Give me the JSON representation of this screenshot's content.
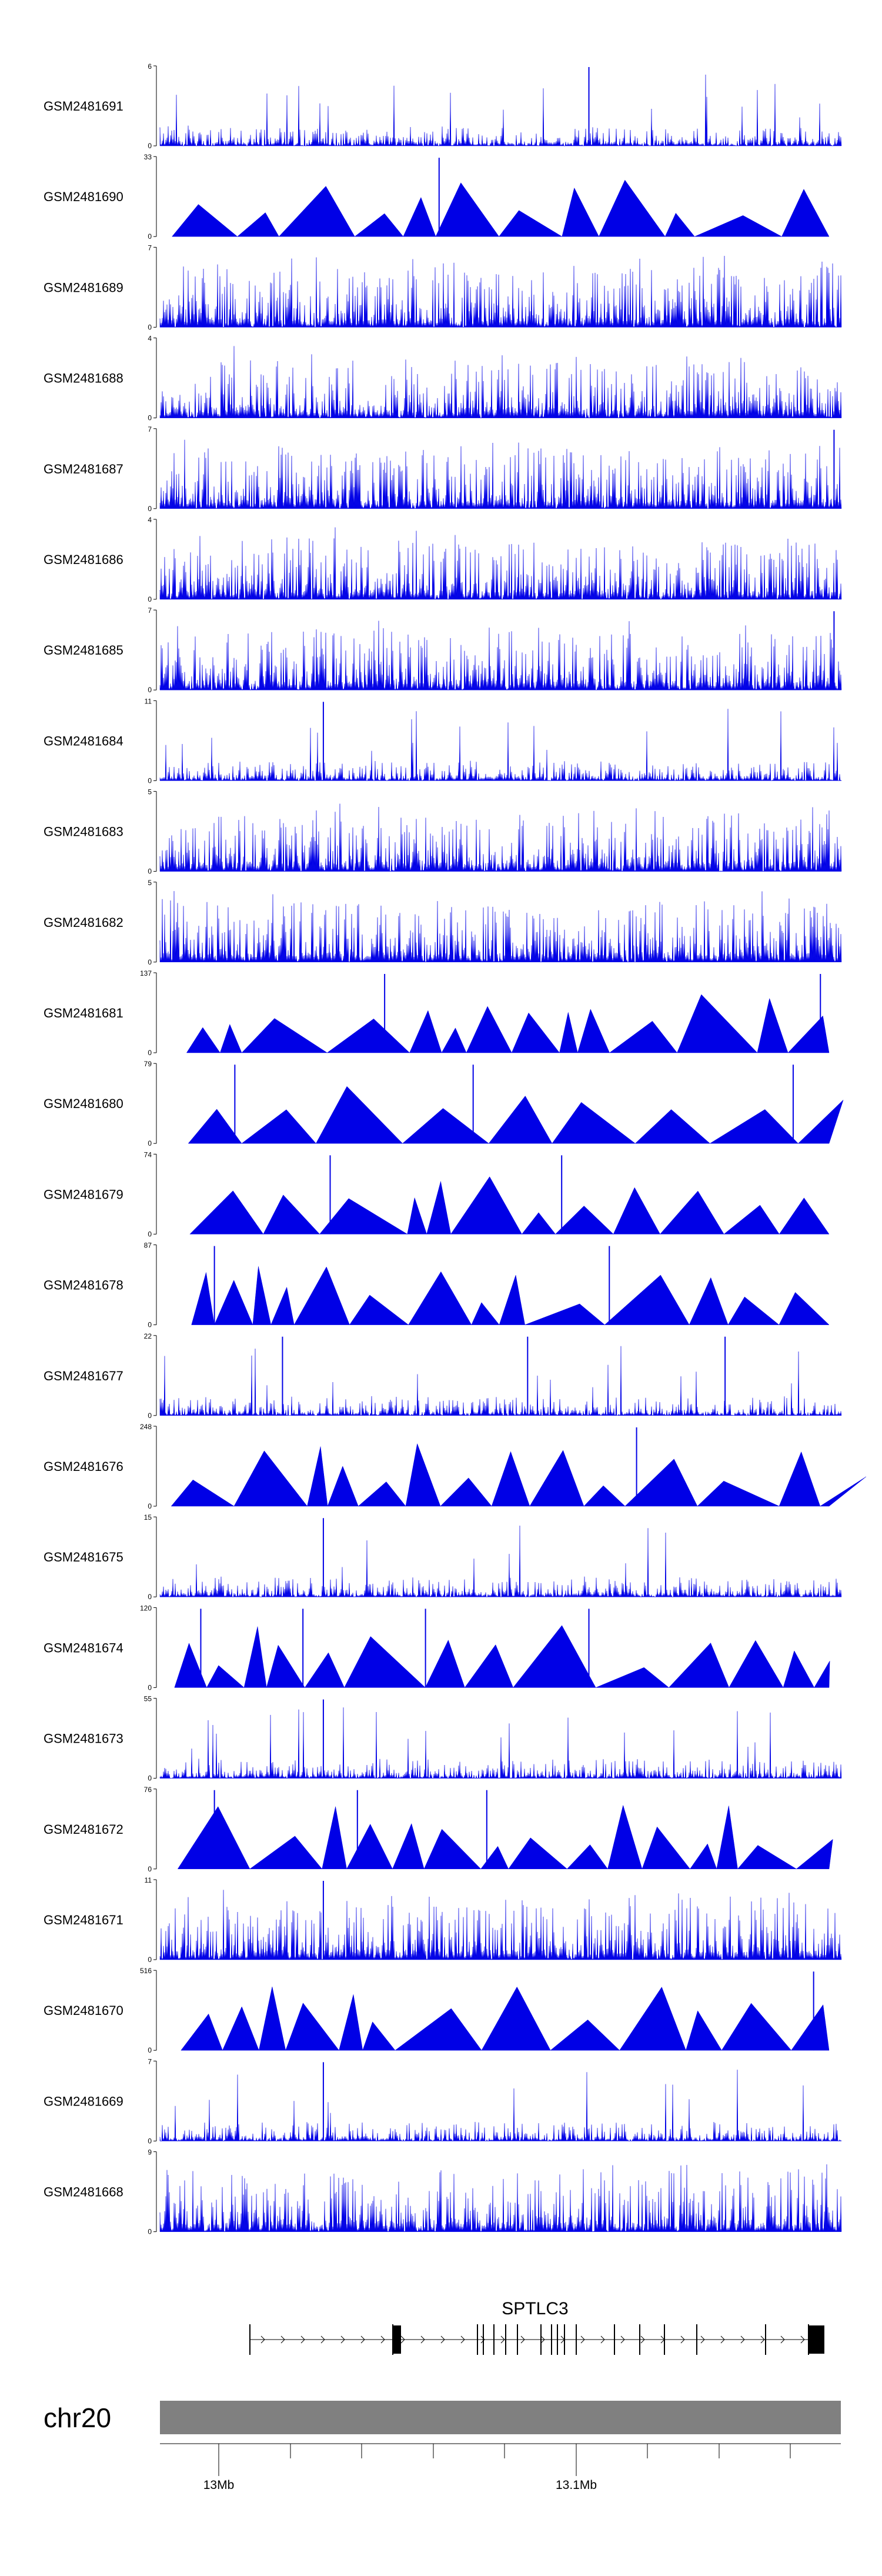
{
  "chart_data": {
    "type": "area",
    "title": "",
    "xlabel": "",
    "ylabel": "",
    "colors": {
      "signal": "#0000e6",
      "chromosome": "#808080",
      "gene": "#000000"
    },
    "tracks": [
      {
        "name": "GSM2481691",
        "ymax": "6",
        "ymin": "0",
        "style": "spiky",
        "seed": 11,
        "peaks": [
          0.63
        ]
      },
      {
        "name": "GSM2481690",
        "ymax": "33",
        "ymin": "0",
        "style": "triangles",
        "seed": 12,
        "peaks": [
          0.41
        ]
      },
      {
        "name": "GSM2481689",
        "ymax": "7",
        "ymin": "0",
        "style": "dense",
        "seed": 13,
        "peaks": []
      },
      {
        "name": "GSM2481688",
        "ymax": "4",
        "ymin": "0",
        "style": "dense",
        "seed": 14,
        "peaks": []
      },
      {
        "name": "GSM2481687",
        "ymax": "7",
        "ymin": "0",
        "style": "dense",
        "seed": 15,
        "peaks": [
          0.99
        ]
      },
      {
        "name": "GSM2481686",
        "ymax": "4",
        "ymin": "0",
        "style": "dense",
        "seed": 16,
        "peaks": []
      },
      {
        "name": "GSM2481685",
        "ymax": "7",
        "ymin": "0",
        "style": "dense",
        "seed": 17,
        "peaks": [
          0.99
        ]
      },
      {
        "name": "GSM2481684",
        "ymax": "11",
        "ymin": "0",
        "style": "spiky",
        "seed": 18,
        "peaks": [
          0.24
        ]
      },
      {
        "name": "GSM2481683",
        "ymax": "5",
        "ymin": "0",
        "style": "dense",
        "seed": 19,
        "peaks": []
      },
      {
        "name": "GSM2481682",
        "ymax": "5",
        "ymin": "0",
        "style": "dense",
        "seed": 20,
        "peaks": []
      },
      {
        "name": "GSM2481681",
        "ymax": "137",
        "ymin": "0",
        "style": "triangles",
        "seed": 21,
        "peaks": [
          0.33,
          0.97
        ]
      },
      {
        "name": "GSM2481680",
        "ymax": "79",
        "ymin": "0",
        "style": "triangles",
        "seed": 22,
        "peaks": [
          0.11,
          0.46,
          0.93
        ]
      },
      {
        "name": "GSM2481679",
        "ymax": "74",
        "ymin": "0",
        "style": "triangles",
        "seed": 23,
        "peaks": [
          0.25,
          0.59
        ]
      },
      {
        "name": "GSM2481678",
        "ymax": "87",
        "ymin": "0",
        "style": "triangles",
        "seed": 24,
        "peaks": [
          0.08,
          0.66
        ]
      },
      {
        "name": "GSM2481677",
        "ymax": "22",
        "ymin": "0",
        "style": "spiky",
        "seed": 25,
        "peaks": [
          0.18,
          0.54,
          0.83
        ]
      },
      {
        "name": "GSM2481676",
        "ymax": "248",
        "ymin": "0",
        "style": "triangles",
        "seed": 26,
        "peaks": [
          0.7
        ]
      },
      {
        "name": "GSM2481675",
        "ymax": "15",
        "ymin": "0",
        "style": "spiky",
        "seed": 27,
        "peaks": [
          0.24
        ]
      },
      {
        "name": "GSM2481674",
        "ymax": "120",
        "ymin": "0",
        "style": "triangles",
        "seed": 28,
        "peaks": [
          0.06,
          0.21,
          0.39,
          0.63
        ]
      },
      {
        "name": "GSM2481673",
        "ymax": "55",
        "ymin": "0",
        "style": "spiky",
        "seed": 29,
        "peaks": [
          0.24
        ]
      },
      {
        "name": "GSM2481672",
        "ymax": "76",
        "ymin": "0",
        "style": "triangles",
        "seed": 30,
        "peaks": [
          0.08,
          0.29,
          0.48
        ]
      },
      {
        "name": "GSM2481671",
        "ymax": "11",
        "ymin": "0",
        "style": "dense",
        "seed": 31,
        "peaks": [
          0.24
        ]
      },
      {
        "name": "GSM2481670",
        "ymax": "516",
        "ymin": "0",
        "style": "triangles",
        "seed": 32,
        "peaks": [
          0.96
        ]
      },
      {
        "name": "GSM2481669",
        "ymax": "7",
        "ymin": "0",
        "style": "spiky",
        "seed": 33,
        "peaks": [
          0.24
        ]
      },
      {
        "name": "GSM2481668",
        "ymax": "9",
        "ymin": "0",
        "style": "dense",
        "seed": 34,
        "peaks": []
      }
    ],
    "gene": {
      "name": "SPTLC3",
      "strand": "+"
    },
    "chromosome": {
      "name": "chr20",
      "ticks": [
        {
          "label": "13Mb"
        },
        {
          "label": "13.1Mb"
        }
      ]
    }
  }
}
